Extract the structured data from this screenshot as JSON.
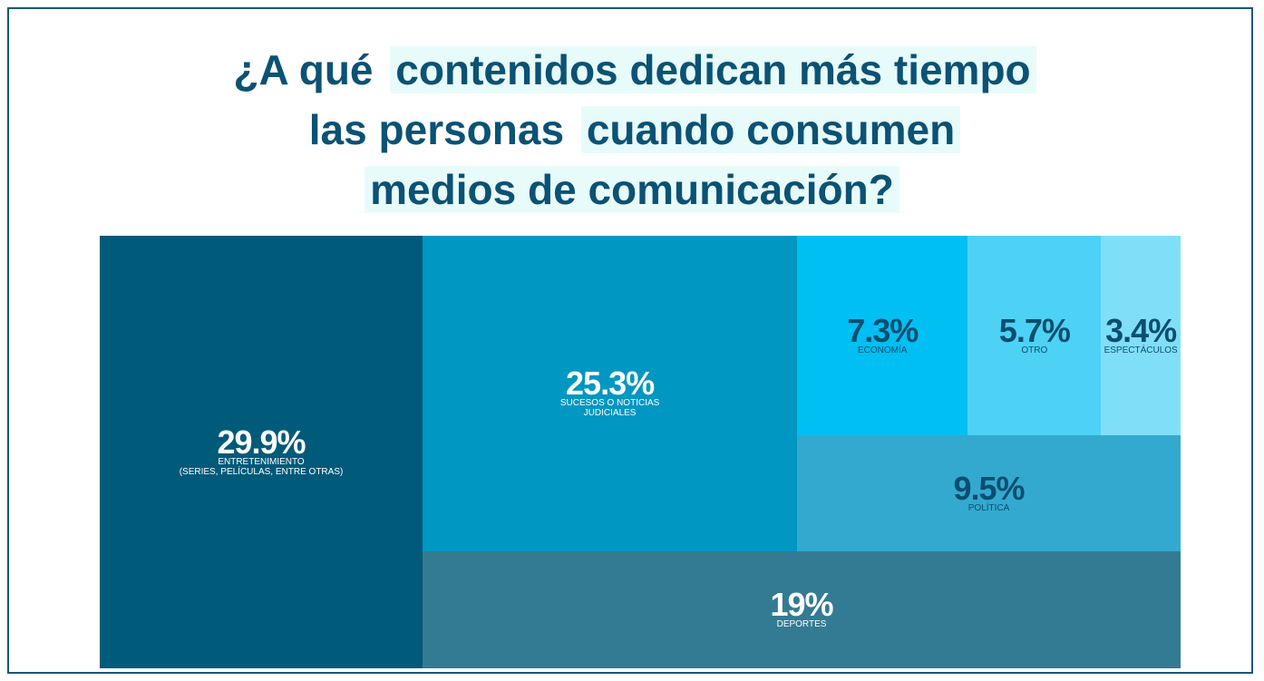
{
  "chart_data": {
    "type": "treemap",
    "title": [
      [
        {
          "text": "¿A qué",
          "highlight": false
        },
        {
          "text": "contenidos dedican más tiempo",
          "highlight": true
        }
      ],
      [
        {
          "text": "las personas",
          "highlight": false
        },
        {
          "text": "cuando consumen",
          "highlight": true
        }
      ],
      [
        {
          "text": "medios de comunicación?",
          "highlight": true
        }
      ]
    ],
    "categories": [
      [
        "ENTRETENIMIENTO",
        "(SERIES, PELÍCULAS, ENTRE OTRAS)"
      ],
      [
        "SUCESOS O NOTICIAS",
        "JUDICIALES"
      ],
      [
        "ECONOMÍA"
      ],
      [
        "OTRO"
      ],
      [
        "ESPECTÁCULOS"
      ],
      [
        "POLÍTICA"
      ],
      [
        "DEPORTES"
      ]
    ],
    "values": [
      29.9,
      25.3,
      7.3,
      5.7,
      3.4,
      9.5,
      19
    ],
    "value_labels": [
      "29.9%",
      "25.3%",
      "7.3%",
      "5.7%",
      "3.4%",
      "9.5%",
      "19%"
    ],
    "colors": [
      "#005a7a",
      "#0097c2",
      "#00bff2",
      "#4dd2f5",
      "#80dff8",
      "#33a9cf",
      "#337b93"
    ],
    "label_colors": [
      "#ffffff",
      "#ffffff",
      "#0a4e70",
      "#0a4e70",
      "#0a4e70",
      "#0a4e70",
      "#ffffff"
    ]
  }
}
